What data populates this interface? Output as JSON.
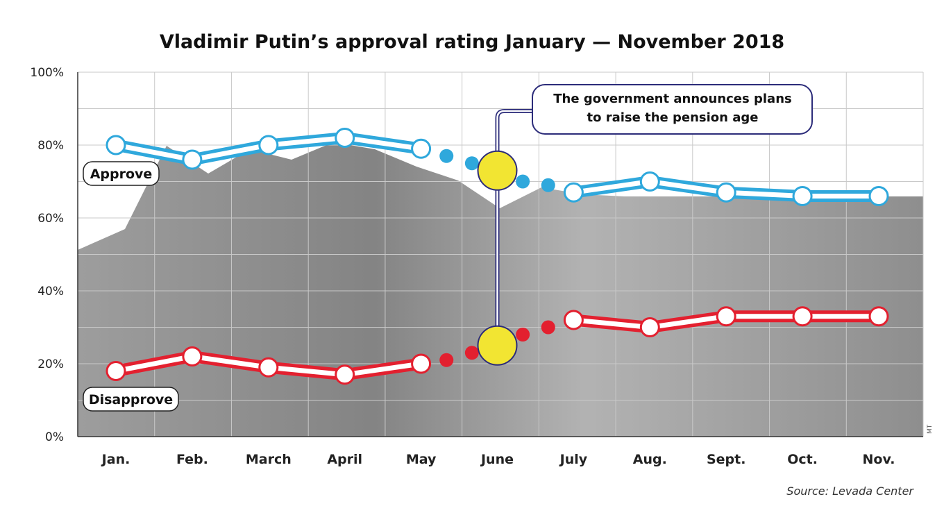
{
  "chart_data": {
    "type": "line",
    "title": "Vladimir Putin’s approval rating January — November 2018",
    "categories": [
      "Jan.",
      "Feb.",
      "March",
      "April",
      "May",
      "June",
      "July",
      "Aug.",
      "Sept.",
      "Oct.",
      "Nov."
    ],
    "y_ticks": [
      "0%",
      "20%",
      "40%",
      "60%",
      "80%",
      "100%"
    ],
    "ylim": [
      0,
      100
    ],
    "grid": true,
    "series": [
      {
        "name": "Approve",
        "color": "#2fa8dc",
        "values": [
          80,
          76,
          80,
          82,
          79,
          null,
          67,
          70,
          67,
          66,
          66
        ],
        "transition": [
          79,
          77,
          75,
          73,
          70,
          69,
          67
        ]
      },
      {
        "name": "Disapprove",
        "color": "#e3202f",
        "values": [
          18,
          22,
          19,
          17,
          20,
          null,
          32,
          30,
          33,
          33,
          33
        ],
        "transition": [
          20,
          21,
          23,
          25,
          28,
          30,
          32
        ]
      }
    ],
    "event": {
      "month": "June",
      "label_lines": [
        "The government announces plans",
        "to raise the pension age"
      ],
      "marker_color": "#f2e532"
    },
    "source": "Source: Levada Center",
    "photo_credit": "MT"
  }
}
